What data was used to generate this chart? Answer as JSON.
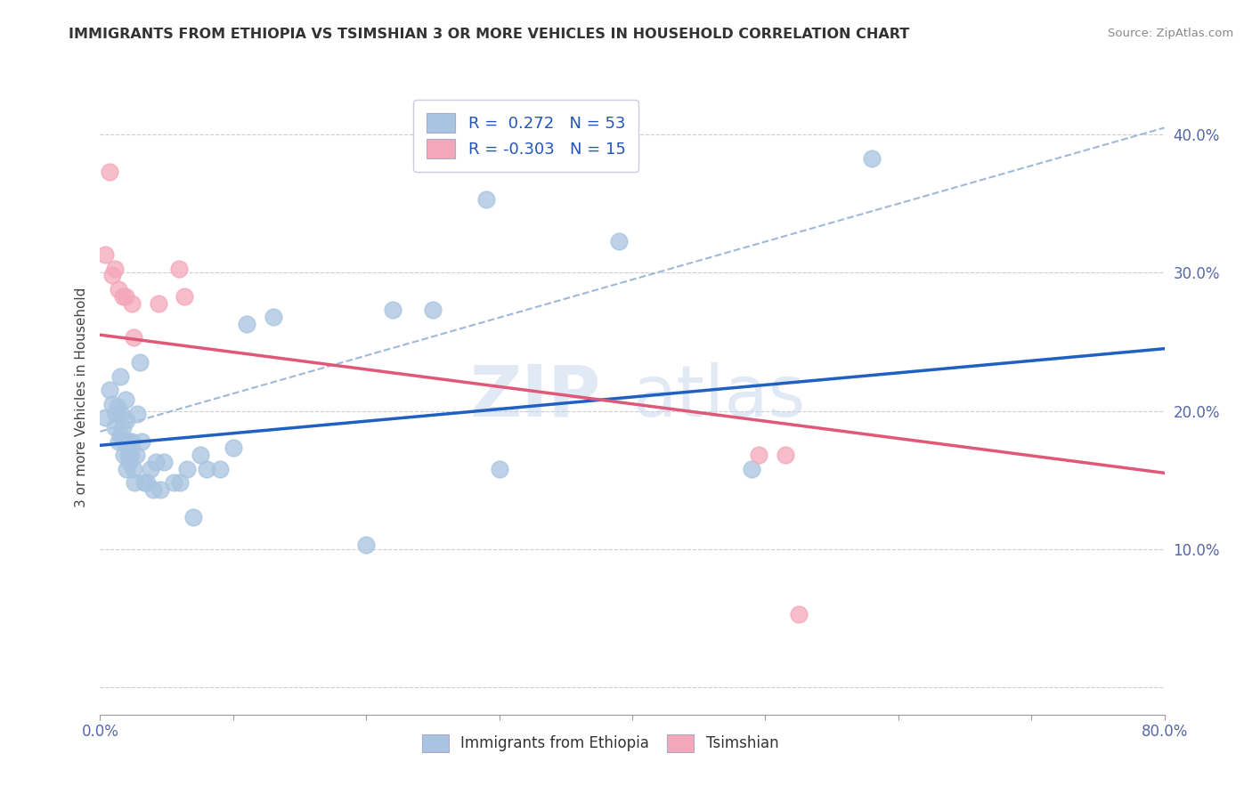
{
  "title": "IMMIGRANTS FROM ETHIOPIA VS TSIMSHIAN 3 OR MORE VEHICLES IN HOUSEHOLD CORRELATION CHART",
  "source": "Source: ZipAtlas.com",
  "ylabel": "3 or more Vehicles in Household",
  "xlim": [
    0.0,
    0.8
  ],
  "ylim": [
    -0.02,
    0.44
  ],
  "blue_color": "#a8c4e0",
  "pink_color": "#f4a7b9",
  "blue_line_color": "#2060c0",
  "pink_line_color": "#e05878",
  "dashed_line_color": "#a0b8d8",
  "watermark_zip": "ZIP",
  "watermark_atlas": "atlas",
  "blue_scatter_x": [
    0.004,
    0.007,
    0.009,
    0.011,
    0.012,
    0.013,
    0.014,
    0.015,
    0.015,
    0.016,
    0.017,
    0.018,
    0.018,
    0.019,
    0.019,
    0.02,
    0.02,
    0.021,
    0.022,
    0.022,
    0.023,
    0.024,
    0.025,
    0.026,
    0.027,
    0.028,
    0.03,
    0.031,
    0.033,
    0.035,
    0.038,
    0.04,
    0.042,
    0.045,
    0.048,
    0.055,
    0.06,
    0.065,
    0.07,
    0.075,
    0.08,
    0.09,
    0.1,
    0.11,
    0.13,
    0.2,
    0.22,
    0.25,
    0.29,
    0.3,
    0.39,
    0.49,
    0.58
  ],
  "blue_scatter_y": [
    0.195,
    0.215,
    0.205,
    0.188,
    0.198,
    0.203,
    0.178,
    0.182,
    0.225,
    0.198,
    0.188,
    0.168,
    0.178,
    0.178,
    0.208,
    0.193,
    0.158,
    0.168,
    0.178,
    0.163,
    0.168,
    0.178,
    0.158,
    0.148,
    0.168,
    0.198,
    0.235,
    0.178,
    0.148,
    0.148,
    0.158,
    0.143,
    0.163,
    0.143,
    0.163,
    0.148,
    0.148,
    0.158,
    0.123,
    0.168,
    0.158,
    0.158,
    0.173,
    0.263,
    0.268,
    0.103,
    0.273,
    0.273,
    0.353,
    0.158,
    0.323,
    0.158,
    0.383
  ],
  "pink_scatter_x": [
    0.004,
    0.007,
    0.009,
    0.011,
    0.014,
    0.017,
    0.019,
    0.024,
    0.025,
    0.044,
    0.059,
    0.063,
    0.495,
    0.515,
    0.525
  ],
  "pink_scatter_y": [
    0.313,
    0.373,
    0.298,
    0.303,
    0.288,
    0.283,
    0.283,
    0.278,
    0.253,
    0.278,
    0.303,
    0.283,
    0.168,
    0.168,
    0.053
  ],
  "blue_line_x": [
    0.0,
    0.8
  ],
  "blue_line_y": [
    0.175,
    0.245
  ],
  "pink_line_x": [
    0.0,
    0.8
  ],
  "pink_line_y": [
    0.255,
    0.155
  ],
  "dashed_line_x": [
    0.0,
    0.8
  ],
  "dashed_line_y": [
    0.185,
    0.405
  ]
}
